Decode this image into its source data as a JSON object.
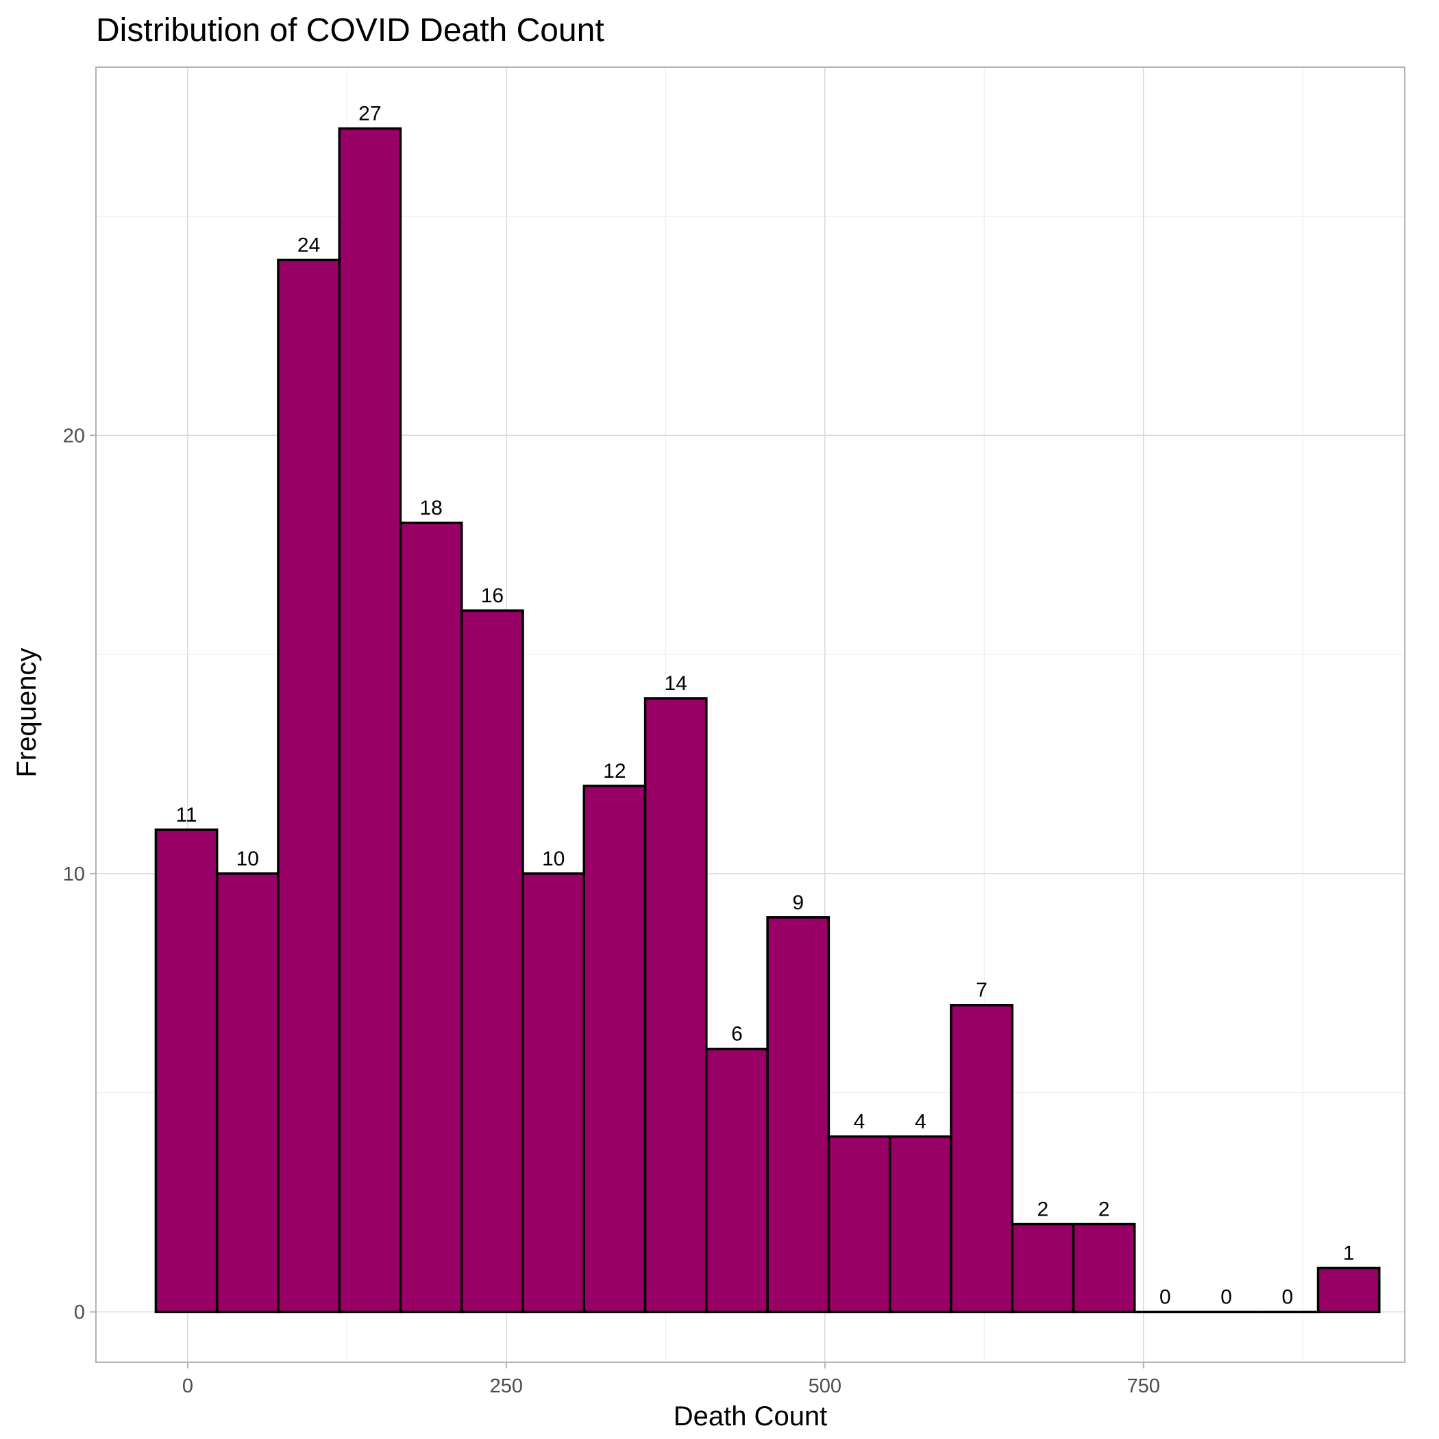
{
  "chart_data": {
    "type": "bar",
    "title": "Distribution of COVID Death Count",
    "xlabel": "Death Count",
    "ylabel": "Frequency",
    "bin_width": 48,
    "bins_start": -25,
    "values": [
      11,
      10,
      24,
      27,
      18,
      16,
      10,
      12,
      14,
      6,
      9,
      4,
      4,
      7,
      2,
      2,
      0,
      0,
      0,
      1
    ],
    "xlim": [
      -72,
      955
    ],
    "ylim": [
      -1.15,
      28.4
    ],
    "x_ticks": [
      0,
      250,
      500,
      750
    ],
    "x_tick_labels": [
      "0",
      "250",
      "500",
      "750"
    ],
    "y_ticks": [
      0,
      10,
      20
    ],
    "y_tick_labels": [
      "0",
      "10",
      "20"
    ],
    "grid": true,
    "legend": "none",
    "colors": {
      "bar_fill": "#990066",
      "bar_stroke": "#000000"
    }
  }
}
